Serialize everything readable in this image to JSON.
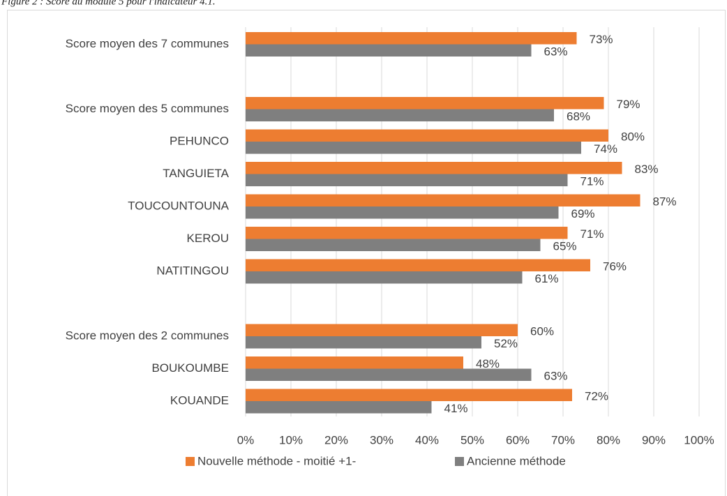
{
  "chart_data": {
    "type": "hbar",
    "title": "Figure 2 : Score du module 5 pour l'indicateur 4.1.",
    "categories": [
      "Score moyen des 7 communes",
      null,
      "Score moyen des 5 communes",
      "PEHUNCO",
      "TANGUIETA",
      "TOUCOUNTOUNA",
      "KEROU",
      "NATITINGOU",
      null,
      "Score moyen des 2 communes",
      "BOUKOUMBE",
      "KOUANDE"
    ],
    "series": [
      {
        "name": "Nouvelle méthode - moitié +1-",
        "color": "#ed7d31",
        "values": [
          73,
          null,
          79,
          80,
          83,
          87,
          71,
          76,
          null,
          60,
          48,
          72
        ],
        "value_labels": [
          "73%",
          null,
          "79%",
          "80%",
          "83%",
          "87%",
          "71%",
          "76%",
          null,
          "60%",
          "48%",
          "72%"
        ]
      },
      {
        "name": "Ancienne méthode",
        "color": "#7f7f7f",
        "values": [
          63,
          null,
          68,
          74,
          71,
          69,
          65,
          61,
          null,
          52,
          63,
          41
        ],
        "value_labels": [
          "63%",
          null,
          "68%",
          "74%",
          "71%",
          "69%",
          "65%",
          "61%",
          null,
          "52%",
          "63%",
          "41%"
        ]
      }
    ],
    "xlim": [
      0,
      100
    ],
    "xticks": [
      {
        "value": 0,
        "label": "0%"
      },
      {
        "value": 10,
        "label": "10%"
      },
      {
        "value": 20,
        "label": "20%"
      },
      {
        "value": 30,
        "label": "30%"
      },
      {
        "value": 40,
        "label": "40%"
      },
      {
        "value": 50,
        "label": "50%"
      },
      {
        "value": 60,
        "label": "60%"
      },
      {
        "value": 70,
        "label": "70%"
      },
      {
        "value": 80,
        "label": "80%"
      },
      {
        "value": 90,
        "label": "90%"
      },
      {
        "value": 100,
        "label": "100%"
      }
    ],
    "grid": true,
    "legend": "bottom"
  }
}
